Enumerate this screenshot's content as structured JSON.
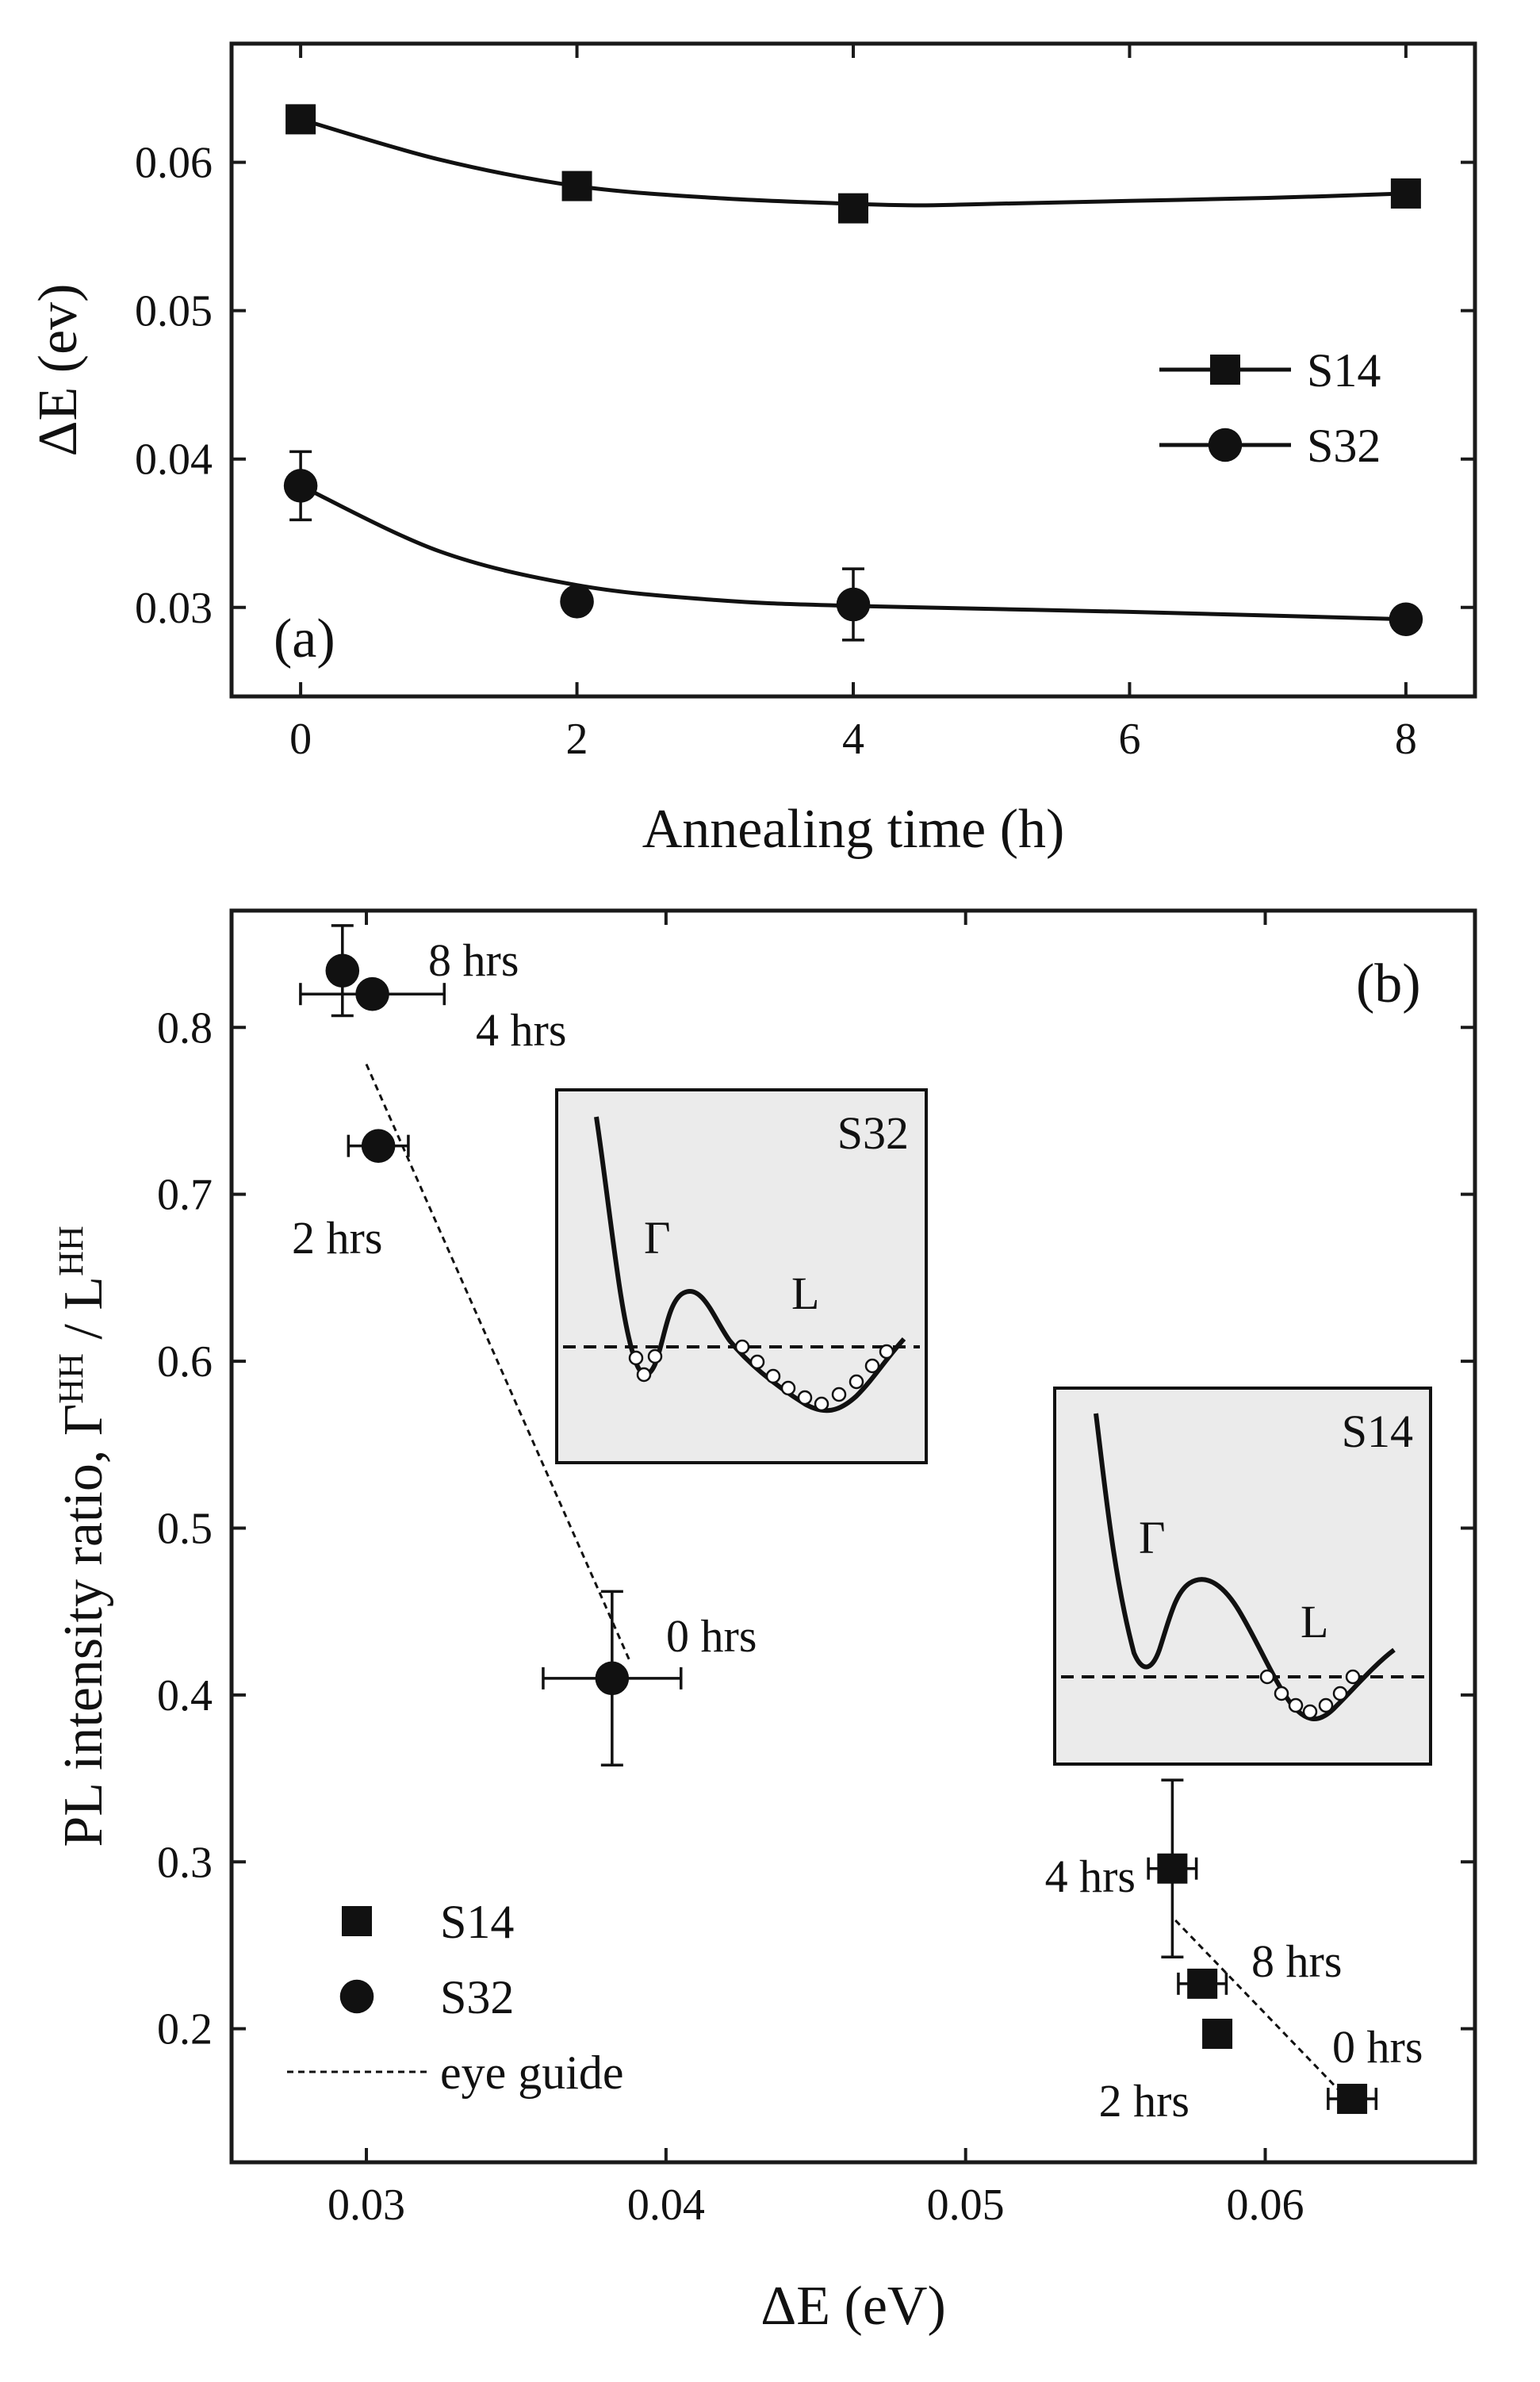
{
  "chart_data": [
    {
      "panel": "(a)",
      "type": "line",
      "xlabel": "Annealing time (h)",
      "ylabel": "ΔE (ev)",
      "xlim": [
        -0.5,
        8.5
      ],
      "ylim": [
        0.024,
        0.068
      ],
      "xticks": [
        0,
        2,
        4,
        6,
        8
      ],
      "xtick_labels": [
        "0",
        "2",
        "4",
        "6",
        "8"
      ],
      "yticks": [
        0.03,
        0.04,
        0.05,
        0.06
      ],
      "ytick_labels": [
        "0.03",
        "0.04",
        "0.05",
        "0.06"
      ],
      "legend_position": "right",
      "series": [
        {
          "name": "S14",
          "marker": "square",
          "x": [
            0,
            2,
            4,
            8
          ],
          "y": [
            0.0629,
            0.0584,
            0.0569,
            0.0579
          ],
          "yerr": [
            0,
            0,
            0,
            0
          ]
        },
        {
          "name": "S32",
          "marker": "circle",
          "x": [
            0,
            2,
            4,
            8
          ],
          "y": [
            0.0382,
            0.0304,
            0.0302,
            0.0292
          ],
          "yerr": [
            0.0023,
            0,
            0.0024,
            0
          ]
        }
      ],
      "fit_curves": [
        {
          "series": "S14",
          "x": [
            0,
            1,
            2,
            3,
            4,
            4.5,
            5,
            6,
            7,
            8
          ],
          "y": [
            0.0629,
            0.0602,
            0.0584,
            0.0576,
            0.0572,
            0.0571,
            0.0572,
            0.0574,
            0.0576,
            0.0579
          ]
        },
        {
          "series": "S32",
          "x": [
            0,
            1,
            2,
            3,
            4,
            6,
            8
          ],
          "y": [
            0.0382,
            0.0338,
            0.0315,
            0.0305,
            0.0301,
            0.0297,
            0.0292
          ]
        }
      ]
    },
    {
      "panel": "(b)",
      "type": "scatter",
      "xlabel": "ΔE (eV)",
      "ylabel_main": "PL intensity ratio, Γ",
      "ylabel_sup1": "HH",
      "ylabel_sep": " / L",
      "ylabel_sup2": "HH",
      "xlim": [
        0.0255,
        0.067
      ],
      "ylim": [
        0.12,
        0.87
      ],
      "xticks": [
        0.03,
        0.04,
        0.05,
        0.06
      ],
      "xtick_labels": [
        "0.03",
        "0.04",
        "0.05",
        "0.06"
      ],
      "yticks": [
        0.2,
        0.3,
        0.4,
        0.5,
        0.6,
        0.7,
        0.8
      ],
      "ytick_labels": [
        "0.2",
        "0.3",
        "0.4",
        "0.5",
        "0.6",
        "0.7",
        "0.8"
      ],
      "legend_position": "bottom-left",
      "legend": [
        "S14",
        "S32",
        "eye guide"
      ],
      "series": [
        {
          "name": "S32",
          "marker": "circle",
          "points": [
            {
              "x": 0.0292,
              "y": 0.834,
              "xerr": 0.0,
              "yerr": 0.027,
              "label": "8 hrs"
            },
            {
              "x": 0.0302,
              "y": 0.82,
              "xerr": 0.0024,
              "yerr": 0.0,
              "label": "4 hrs"
            },
            {
              "x": 0.0304,
              "y": 0.729,
              "xerr": 0.001,
              "yerr": 0.0,
              "label": "2 hrs"
            },
            {
              "x": 0.0382,
              "y": 0.41,
              "xerr": 0.0023,
              "yerr": 0.052,
              "label": "0 hrs"
            }
          ]
        },
        {
          "name": "S14",
          "marker": "square",
          "points": [
            {
              "x": 0.0569,
              "y": 0.296,
              "xerr": 0.0008,
              "yerr": 0.053,
              "label": "4 hrs"
            },
            {
              "x": 0.0579,
              "y": 0.227,
              "xerr": 0.0008,
              "yerr": 0.0,
              "label": "8 hrs"
            },
            {
              "x": 0.0584,
              "y": 0.197,
              "xerr": 0.0,
              "yerr": 0.0,
              "label": "2 hrs"
            },
            {
              "x": 0.0629,
              "y": 0.158,
              "xerr": 0.0008,
              "yerr": 0.0,
              "label": "0 hrs"
            }
          ]
        }
      ],
      "eye_guides": [
        {
          "name": "eye guide",
          "x": [
            0.03,
            0.0388
          ],
          "y": [
            0.778,
            0.42
          ]
        },
        {
          "name": "eye guide",
          "x": [
            0.057,
            0.0629
          ],
          "y": [
            0.265,
            0.155
          ]
        }
      ],
      "insets": [
        {
          "title": "S32",
          "valley_labels": [
            "Γ",
            "L"
          ]
        },
        {
          "title": "S14",
          "valley_labels": [
            "Γ",
            "L"
          ]
        }
      ]
    }
  ]
}
